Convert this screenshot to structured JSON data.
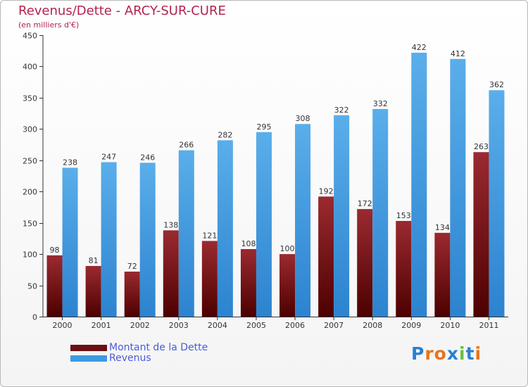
{
  "title": "Revenus/Dette - ARCY-SUR-CURE",
  "subtitle": "(en milliers d'€)",
  "legend": {
    "items": [
      {
        "label": "Montant de la Dette",
        "color": "#6b0f15"
      },
      {
        "label": "Revenus",
        "color": "#3d9be2"
      }
    ]
  },
  "logo": {
    "letters": [
      "P",
      "r",
      "o",
      "x",
      "i",
      "t",
      "i"
    ],
    "colors": [
      "#2a7fd4",
      "#e8731c",
      "#e8731c",
      "#2a7fd4",
      "#6abf3c",
      "#2a7fd4",
      "#e8731c"
    ]
  },
  "chart_data": {
    "type": "bar",
    "categories": [
      "2000",
      "2001",
      "2002",
      "2003",
      "2004",
      "2005",
      "2006",
      "2007",
      "2008",
      "2009",
      "2010",
      "2011"
    ],
    "series": [
      {
        "name": "Montant de la Dette",
        "values": [
          98,
          81,
          72,
          138,
          121,
          108,
          100,
          192,
          172,
          153,
          134,
          263
        ],
        "color": "#6b0f15"
      },
      {
        "name": "Revenus",
        "values": [
          238,
          247,
          246,
          266,
          282,
          295,
          308,
          322,
          332,
          422,
          412,
          362
        ],
        "color": "#3d9be2"
      }
    ],
    "ylim": [
      0,
      450
    ],
    "yticks": [
      "0",
      "50",
      "100",
      "150",
      "200",
      "250",
      "300",
      "350",
      "400",
      "450"
    ],
    "grid": false,
    "legend_position": "bottom-left"
  }
}
